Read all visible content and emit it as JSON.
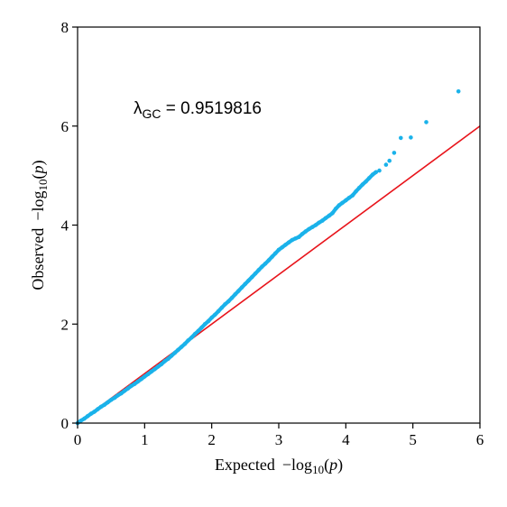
{
  "chart_data": {
    "type": "scatter",
    "title": "",
    "xlabel": {
      "prefix": "Expected",
      "fn": "−log",
      "sub": "10",
      "arg": "p"
    },
    "ylabel": {
      "prefix": "Observed",
      "fn": "−log",
      "sub": "10",
      "arg": "p"
    },
    "xlim": [
      0,
      6
    ],
    "ylim": [
      0,
      8
    ],
    "xticks": [
      "0",
      "1",
      "2",
      "3",
      "4",
      "5",
      "6"
    ],
    "yticks": [
      "0",
      "2",
      "4",
      "6",
      "8"
    ],
    "grid": false,
    "annotation": {
      "symbol": "λ",
      "sub": "GC",
      "text": " = 0.9519816"
    },
    "reference_line": {
      "x": [
        0,
        6
      ],
      "y": [
        0,
        6
      ],
      "color": "#e8141b"
    },
    "points_color": "#1ab2ea",
    "series": [
      {
        "x": [
          0.0,
          0.05,
          0.1,
          0.15,
          0.2,
          0.25,
          0.3,
          0.35,
          0.4,
          0.45,
          0.5,
          0.55,
          0.6,
          0.65,
          0.7,
          0.75,
          0.8,
          0.85,
          0.9,
          0.95,
          1.0,
          1.05,
          1.1,
          1.15,
          1.2,
          1.25,
          1.3,
          1.35,
          1.4,
          1.45,
          1.5,
          1.55,
          1.6,
          1.65,
          1.7,
          1.75,
          1.8,
          1.85,
          1.9,
          1.95,
          2.0,
          2.05,
          2.1,
          2.15,
          2.2,
          2.25,
          2.3,
          2.35,
          2.4,
          2.45,
          2.5,
          2.55,
          2.6,
          2.65,
          2.7,
          2.75,
          2.8,
          2.85,
          2.9,
          2.95,
          3.0,
          3.05,
          3.1,
          3.15,
          3.2,
          3.25,
          3.3,
          3.35,
          3.4,
          3.45,
          3.5,
          3.55,
          3.6,
          3.65,
          3.7,
          3.75,
          3.8,
          3.85,
          3.9,
          3.95,
          4.0,
          4.05,
          4.1,
          4.15,
          4.2,
          4.25,
          4.3,
          4.35,
          4.4,
          4.45,
          4.5,
          4.6,
          4.65,
          4.72,
          4.82,
          4.97,
          5.2,
          5.68
        ],
        "y": [
          0.0,
          0.05,
          0.09,
          0.14,
          0.19,
          0.23,
          0.28,
          0.33,
          0.37,
          0.42,
          0.47,
          0.51,
          0.56,
          0.6,
          0.65,
          0.7,
          0.75,
          0.79,
          0.84,
          0.89,
          0.94,
          0.99,
          1.04,
          1.09,
          1.14,
          1.19,
          1.25,
          1.3,
          1.36,
          1.42,
          1.48,
          1.54,
          1.6,
          1.67,
          1.73,
          1.8,
          1.86,
          1.93,
          2.0,
          2.06,
          2.13,
          2.19,
          2.26,
          2.33,
          2.4,
          2.46,
          2.53,
          2.6,
          2.67,
          2.74,
          2.81,
          2.88,
          2.95,
          3.02,
          3.09,
          3.16,
          3.22,
          3.29,
          3.36,
          3.43,
          3.5,
          3.55,
          3.6,
          3.65,
          3.7,
          3.73,
          3.76,
          3.82,
          3.87,
          3.92,
          3.96,
          4.0,
          4.05,
          4.09,
          4.14,
          4.19,
          4.24,
          4.33,
          4.4,
          4.45,
          4.5,
          4.55,
          4.6,
          4.68,
          4.75,
          4.82,
          4.88,
          4.95,
          5.02,
          5.07,
          5.1,
          5.22,
          5.3,
          5.46,
          5.76,
          5.77,
          6.08,
          6.7
        ]
      }
    ]
  }
}
